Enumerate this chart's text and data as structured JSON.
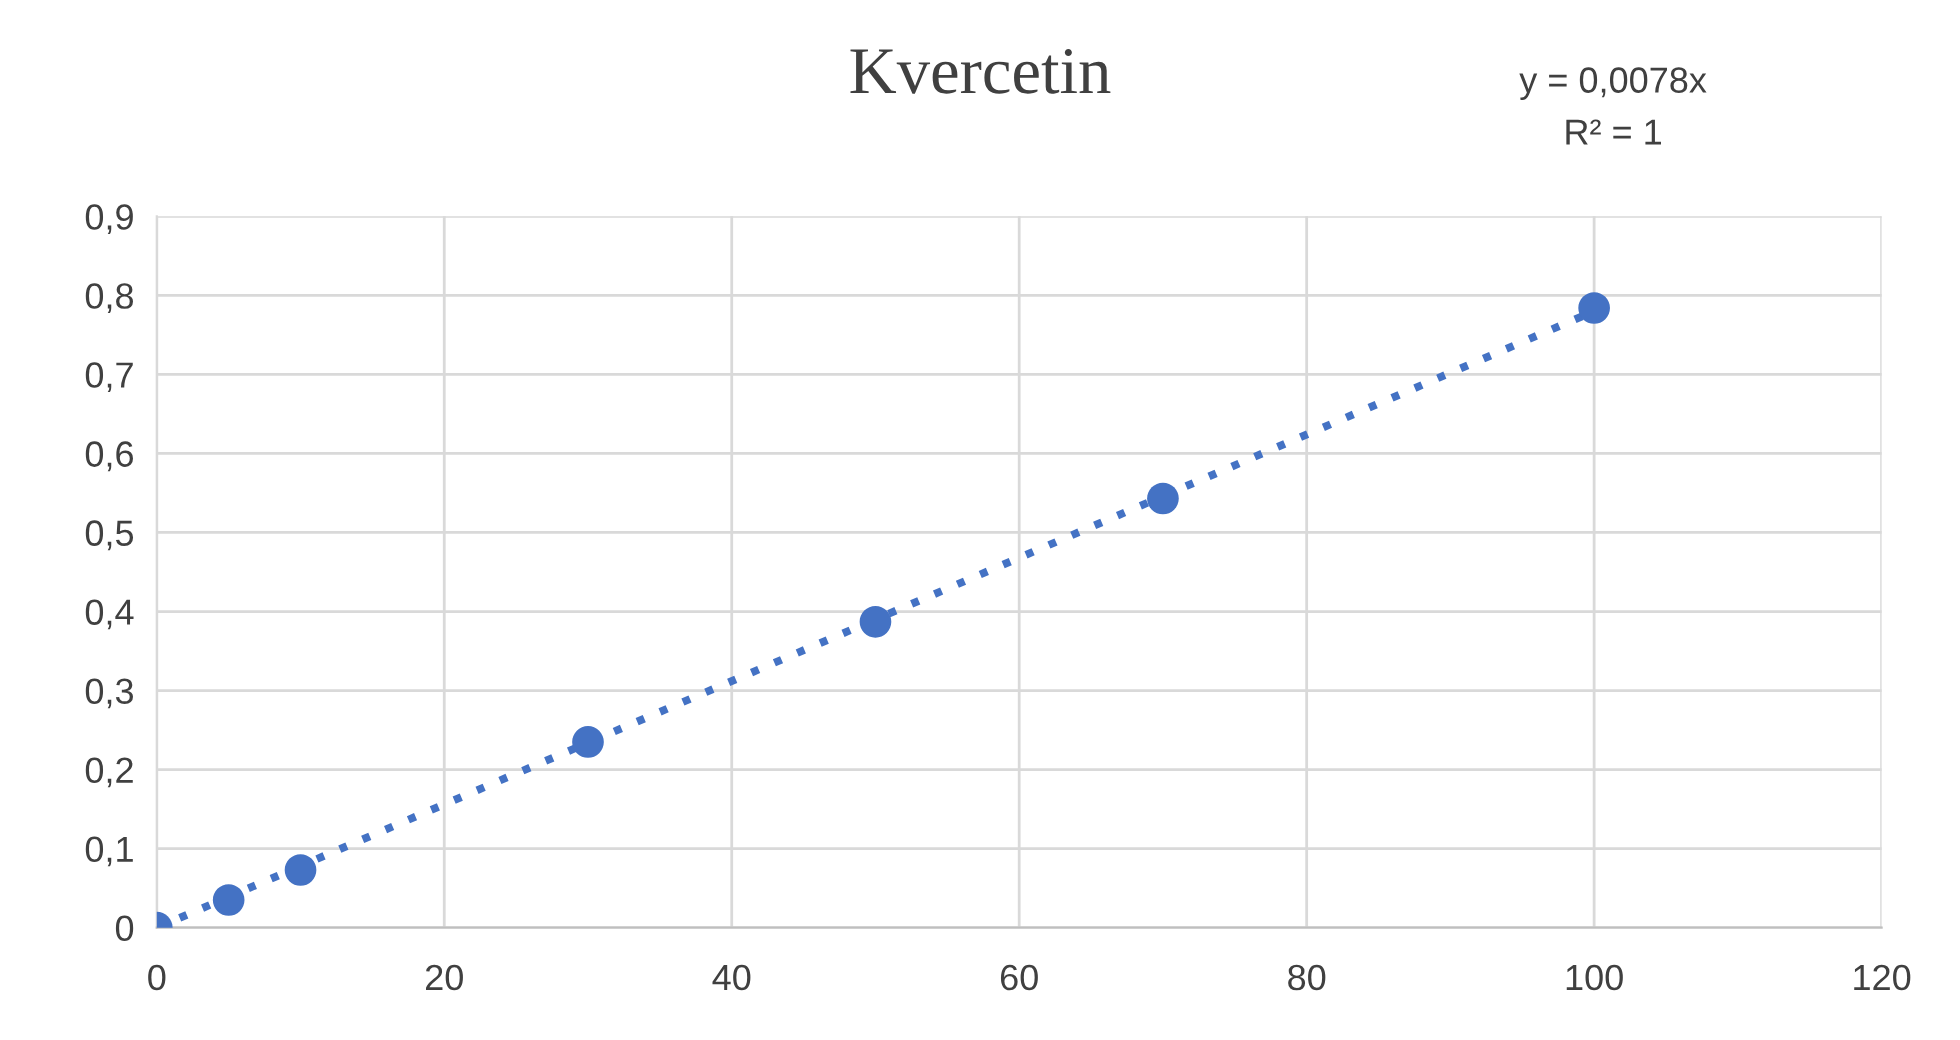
{
  "chart_data": {
    "type": "scatter",
    "title": "Kvercetin",
    "annotations": [
      "y = 0,0078x",
      "R² = 1"
    ],
    "x": [
      0,
      5,
      10,
      30,
      50,
      70,
      100
    ],
    "series": [
      {
        "color": "#4472c4",
        "marker": "circle",
        "values": [
          0,
          0.035,
          0.073,
          0.235,
          0.387,
          0.543,
          0.784
        ]
      },
      {
        "type": "line",
        "color": "#4472c4",
        "line_style": "dotted",
        "x": [
          0,
          100
        ],
        "values": [
          0,
          0.78
        ]
      }
    ],
    "xlim": [
      0,
      120
    ],
    "xticks": [
      0,
      20,
      40,
      60,
      80,
      100,
      120
    ],
    "ylim": [
      0,
      0.9
    ],
    "yticks": [
      0,
      {
        "value": 0.1,
        "label": "0,1"
      },
      {
        "value": 0.2,
        "label": "0,2"
      },
      {
        "value": 0.3,
        "label": "0,3"
      },
      {
        "value": 0.4,
        "label": "0,4"
      },
      {
        "value": 0.5,
        "label": "0,5"
      },
      {
        "value": 0.6,
        "label": "0,6"
      },
      {
        "value": 0.7,
        "label": "0,7"
      },
      {
        "value": 0.8,
        "label": "0,8"
      },
      {
        "value": 0.9,
        "label": "0,9"
      }
    ],
    "grid": true,
    "legend": false
  }
}
